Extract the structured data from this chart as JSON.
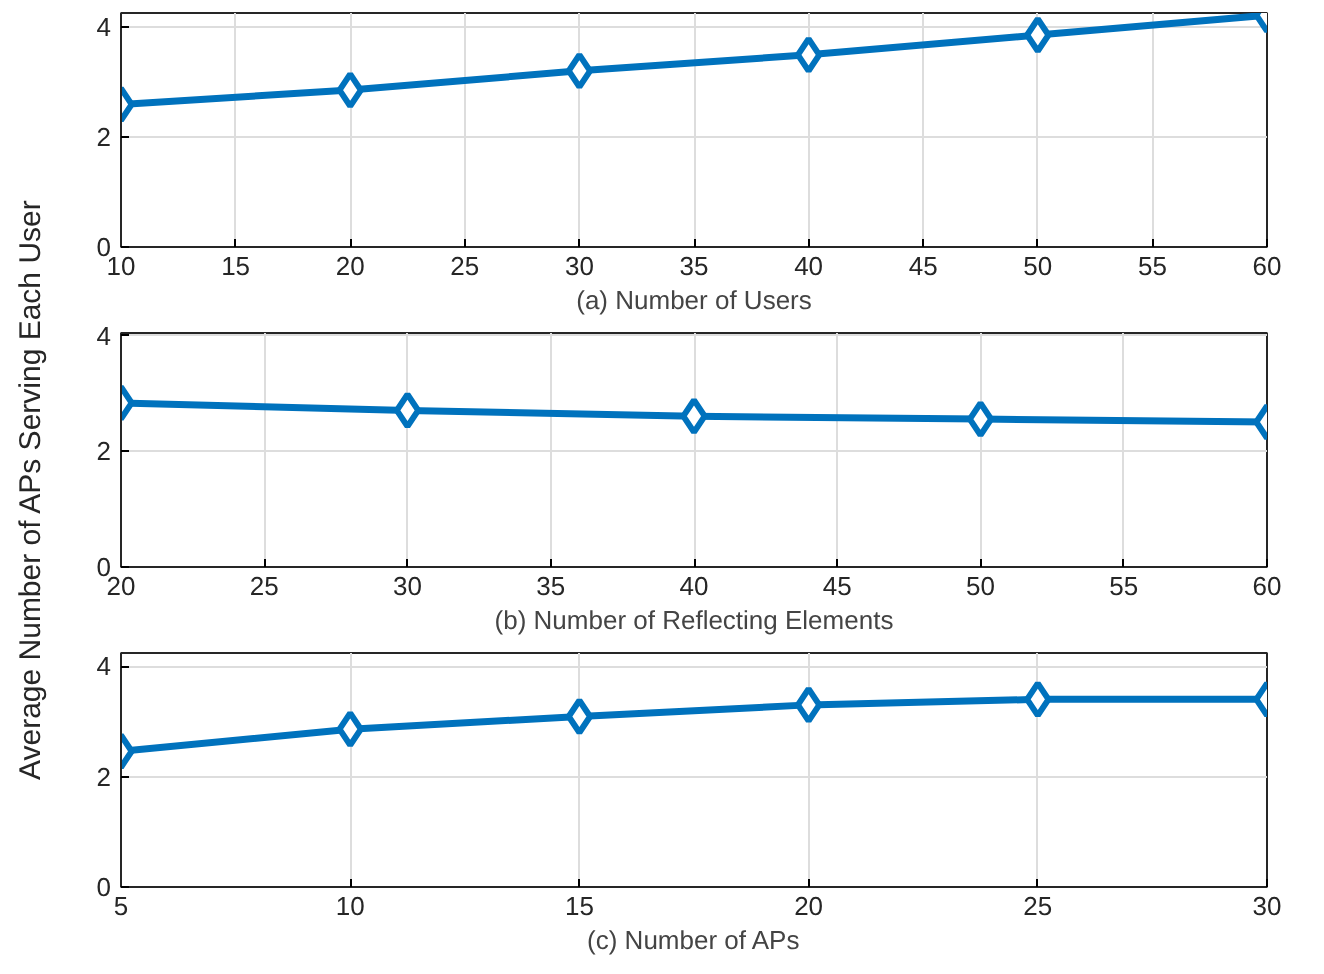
{
  "chart_data": [
    {
      "type": "line",
      "xlabel": "(a) Number of Users",
      "x": [
        10,
        20,
        30,
        40,
        50,
        60
      ],
      "series": [
        {
          "color": "#0072bd",
          "values": [
            2.59,
            2.85,
            3.2,
            3.49,
            3.85,
            4.21
          ]
        }
      ],
      "xlim": [
        10,
        60
      ],
      "xticks": [
        10,
        15,
        20,
        25,
        30,
        35,
        40,
        45,
        50,
        55,
        60
      ],
      "ylim": [
        0,
        4.25
      ],
      "yticks": [
        0,
        2,
        4
      ],
      "grid": true,
      "marker": "diamond",
      "line_style": "solid"
    },
    {
      "type": "line",
      "xlabel": "(b) Number of Reflecting Elements",
      "ylabel": "Average Number of APs Serving Each User",
      "x": [
        20,
        30,
        40,
        50,
        60
      ],
      "series": [
        {
          "color": "#0072bd",
          "values": [
            2.84,
            2.71,
            2.61,
            2.56,
            2.51
          ]
        }
      ],
      "xlim": [
        20,
        60
      ],
      "xticks": [
        20,
        25,
        30,
        35,
        40,
        45,
        50,
        55,
        60
      ],
      "ylim": [
        0,
        4.05
      ],
      "yticks": [
        0,
        2,
        4
      ],
      "grid": true,
      "marker": "diamond",
      "line_style": "solid"
    },
    {
      "type": "line",
      "xlabel": "(c) Number of APs",
      "x": [
        5,
        10,
        15,
        20,
        25,
        30
      ],
      "series": [
        {
          "color": "#0072bd",
          "values": [
            2.46,
            2.86,
            3.09,
            3.3,
            3.4,
            3.4
          ]
        }
      ],
      "xlim": [
        5,
        30
      ],
      "xticks": [
        5,
        10,
        15,
        20,
        25,
        30
      ],
      "ylim": [
        0,
        4.24
      ],
      "yticks": [
        0,
        2,
        4
      ],
      "grid": true,
      "marker": "diamond",
      "line_style": "solid"
    }
  ]
}
